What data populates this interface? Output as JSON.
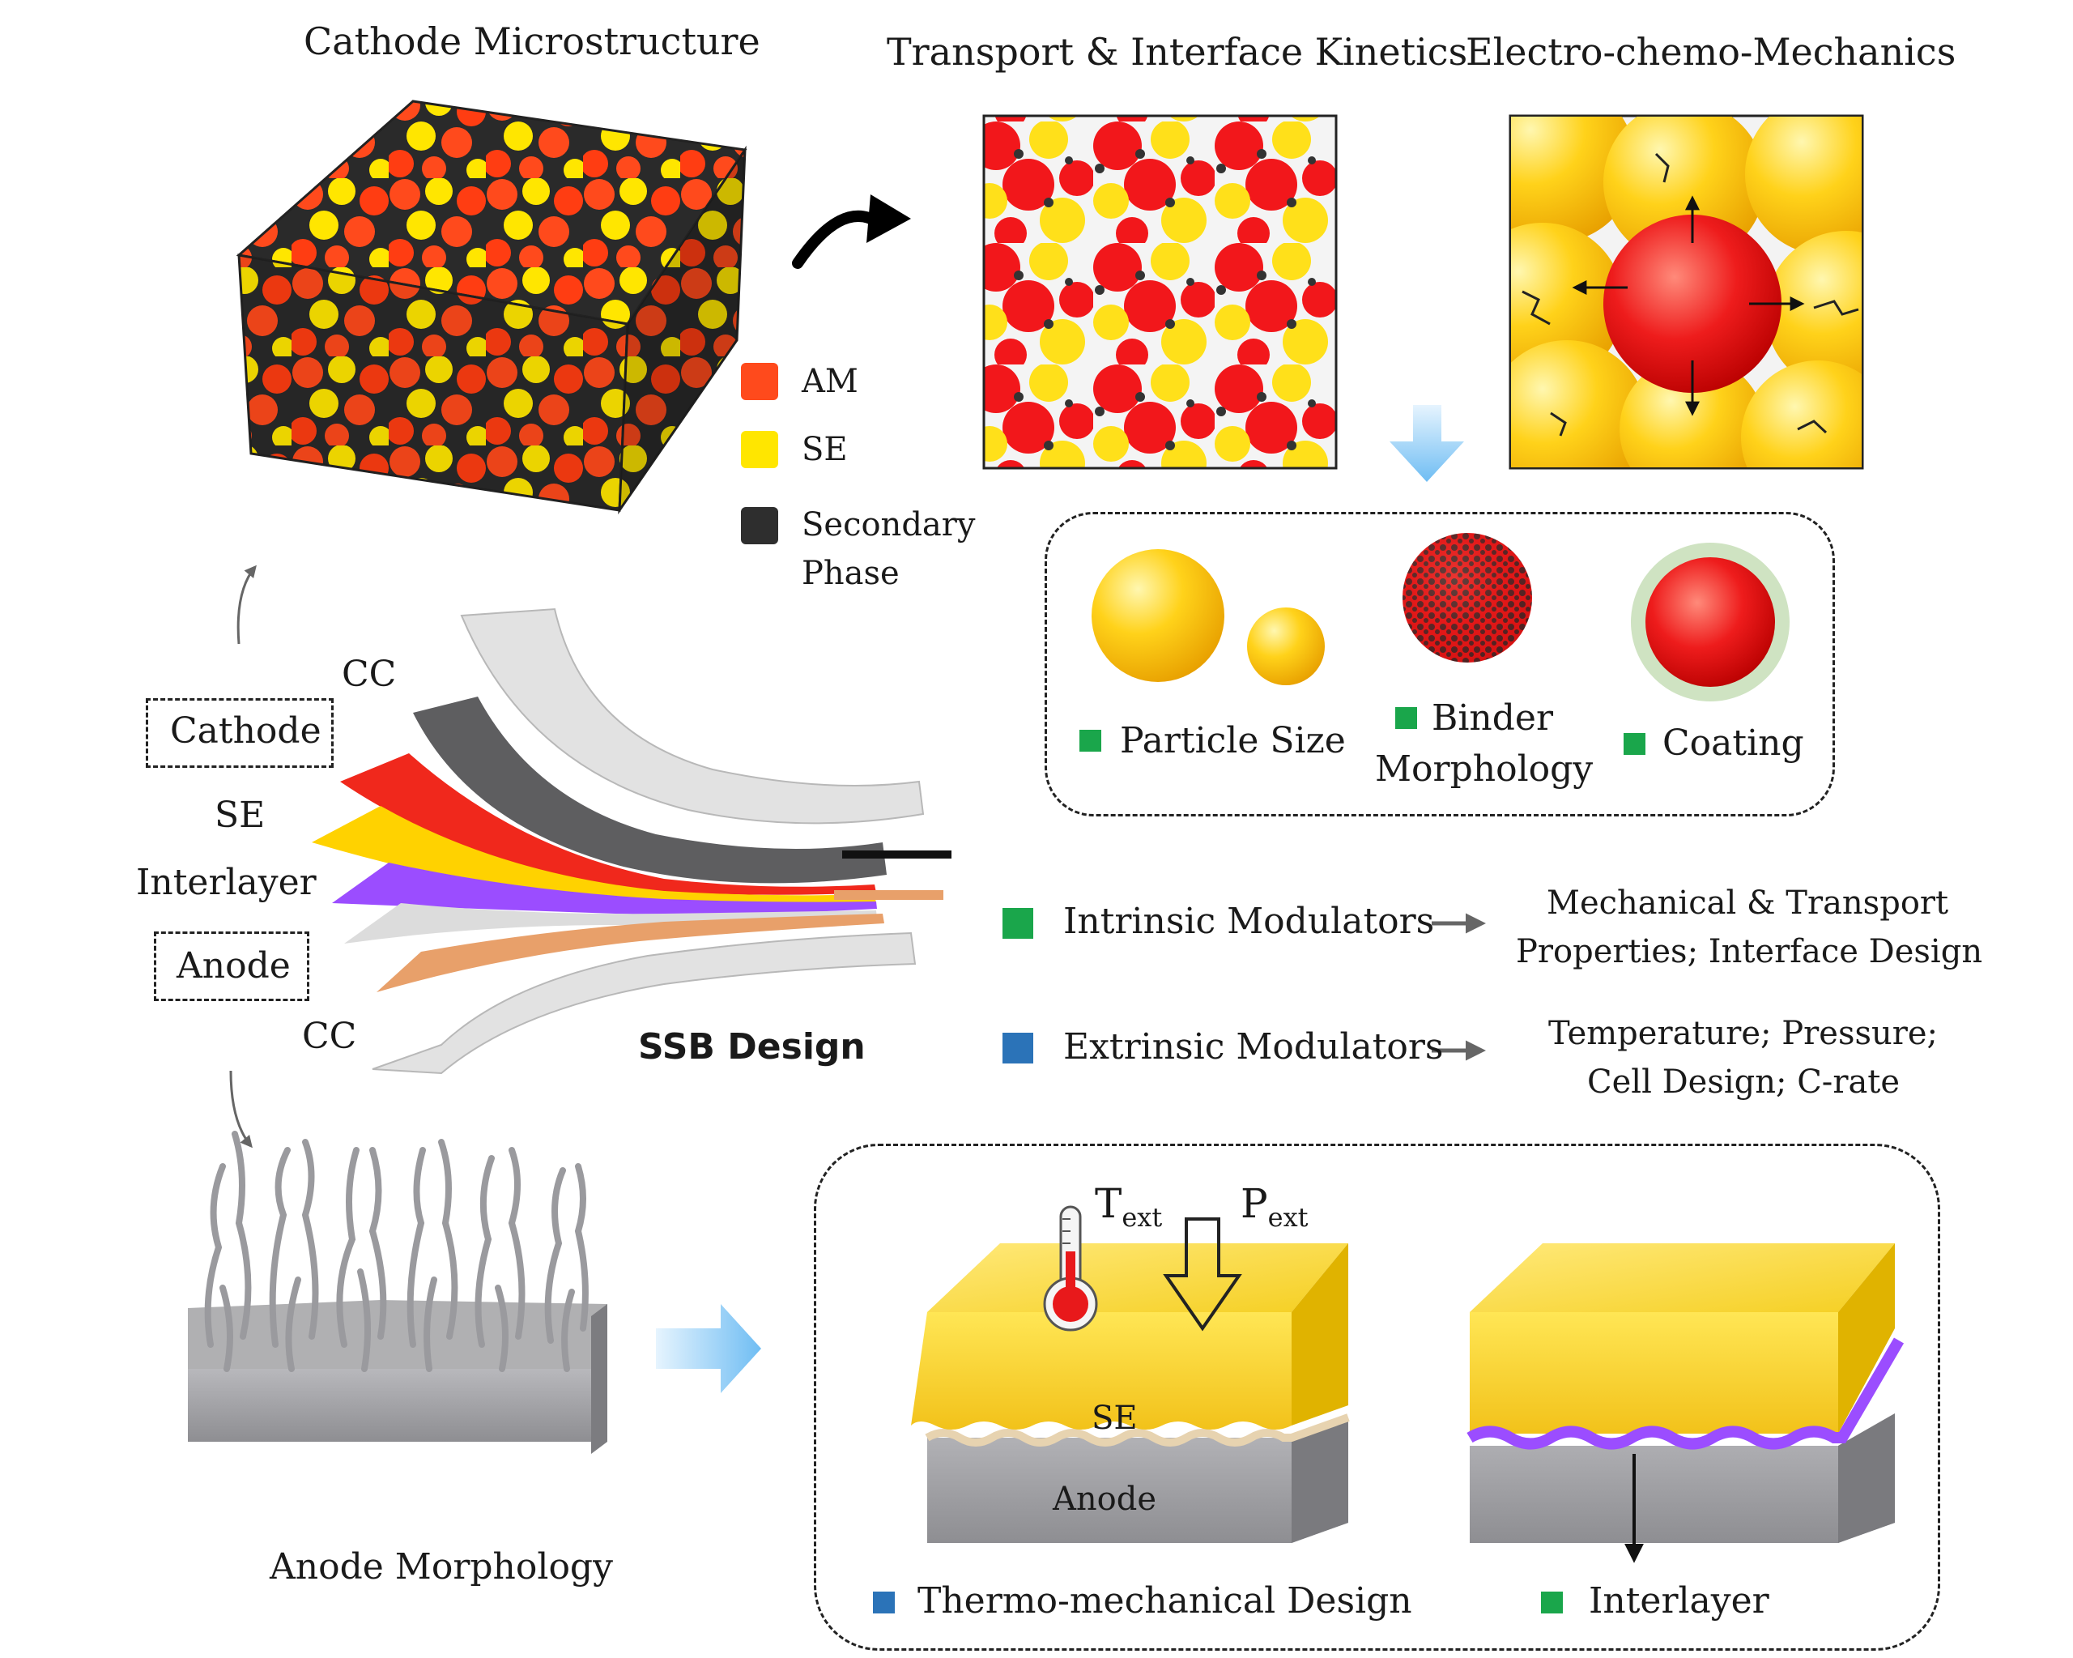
{
  "titles": {
    "cathode_microstructure": "Cathode Microstructure",
    "transport": "Transport & Interface Kinetics",
    "electro_chemo": "Electro-chemo-Mechanics",
    "anode_morphology": "Anode Morphology",
    "ssb_design": "SSB Design"
  },
  "legend": {
    "am": "AM",
    "se": "SE",
    "secondary_1": "Secondary",
    "secondary_2": "Phase"
  },
  "stack_labels": {
    "cc_top": "CC",
    "cathode": "Cathode",
    "se": "SE",
    "interlayer": "Interlayer",
    "anode": "Anode",
    "cc_bottom": "CC"
  },
  "modulator_panel": {
    "particle_size": "Particle Size",
    "binder_1": "Binder",
    "binder_2": "Morphology",
    "coating": "Coating"
  },
  "modulators": {
    "intrinsic": "Intrinsic Modulators",
    "intrinsic_desc_1": "Mechanical & Transport",
    "intrinsic_desc_2": "Properties; Interface Design",
    "extrinsic": "Extrinsic Modulators",
    "extrinsic_desc_1": "Temperature; Pressure;",
    "extrinsic_desc_2": "Cell Design; C-rate"
  },
  "bottom_panel": {
    "t_main": "T",
    "t_sub": "ext",
    "p_main": "P",
    "p_sub": "ext",
    "se_label": "SE",
    "anode_label": "Anode",
    "thermo": "Thermo-mechanical Design",
    "interlayer": "Interlayer"
  },
  "colors": {
    "am": "#ff4a1c",
    "se": "#ffe600",
    "secondary": "#2e2e2e",
    "intrinsic": "#1aa64b",
    "extrinsic": "#2b73b8",
    "interlayer_purple": "#9b4dff",
    "arrow_blue": "#7fc4f5"
  }
}
